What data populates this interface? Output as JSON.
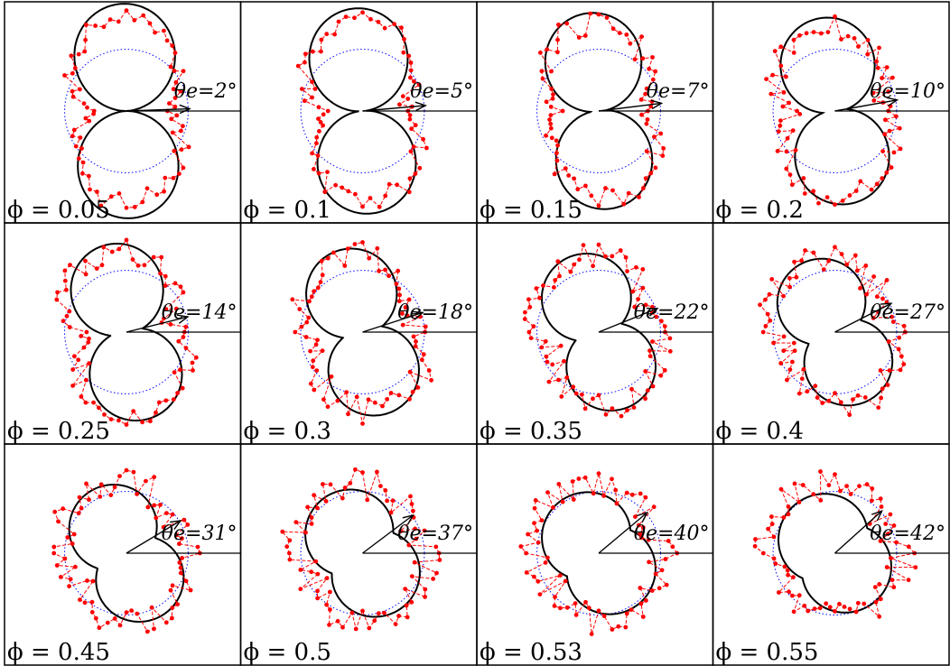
{
  "figure": {
    "rows": 3,
    "cols": 4,
    "colors": {
      "border": "#000000",
      "reference_circle": "#0000ff",
      "measured": "#ff0000",
      "model": "#000000",
      "axis": "#000000"
    }
  },
  "chart_data": [
    {
      "type": "polar",
      "phi_label": "ϕ = 0.05",
      "angle_label": "θe=2°",
      "theta_e_deg": 2,
      "phi": 0.05
    },
    {
      "type": "polar",
      "phi_label": "ϕ = 0.1",
      "angle_label": "θe=5°",
      "theta_e_deg": 5,
      "phi": 0.1
    },
    {
      "type": "polar",
      "phi_label": "ϕ = 0.15",
      "angle_label": "θe=7°",
      "theta_e_deg": 7,
      "phi": 0.15
    },
    {
      "type": "polar",
      "phi_label": "ϕ = 0.2",
      "angle_label": "θe=10°",
      "theta_e_deg": 10,
      "phi": 0.2
    },
    {
      "type": "polar",
      "phi_label": "ϕ = 0.25",
      "angle_label": "θe=14°",
      "theta_e_deg": 14,
      "phi": 0.25
    },
    {
      "type": "polar",
      "phi_label": "ϕ = 0.3",
      "angle_label": "θe=18°",
      "theta_e_deg": 18,
      "phi": 0.3
    },
    {
      "type": "polar",
      "phi_label": "ϕ = 0.35",
      "angle_label": "θe=22°",
      "theta_e_deg": 22,
      "phi": 0.35
    },
    {
      "type": "polar",
      "phi_label": "ϕ = 0.4",
      "angle_label": "θe=27°",
      "theta_e_deg": 27,
      "phi": 0.4
    },
    {
      "type": "polar",
      "phi_label": "ϕ = 0.45",
      "angle_label": "θe=31°",
      "theta_e_deg": 31,
      "phi": 0.45
    },
    {
      "type": "polar",
      "phi_label": "ϕ = 0.5",
      "angle_label": "θe=37°",
      "theta_e_deg": 37,
      "phi": 0.5
    },
    {
      "type": "polar",
      "phi_label": "ϕ = 0.53",
      "angle_label": "θe=40°",
      "theta_e_deg": 40,
      "phi": 0.53
    },
    {
      "type": "polar",
      "phi_label": "ϕ = 0.55",
      "angle_label": "θe=42°",
      "theta_e_deg": 42,
      "phi": 0.55
    }
  ]
}
